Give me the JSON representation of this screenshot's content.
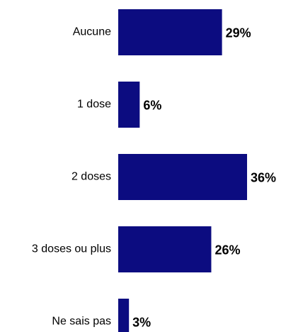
{
  "chart_data": {
    "type": "bar",
    "orientation": "horizontal",
    "categories": [
      "Aucune",
      "1 dose",
      "2 doses",
      "3 doses ou plus",
      "Ne sais pas"
    ],
    "values": [
      29,
      6,
      36,
      26,
      3
    ],
    "value_labels": [
      "29%",
      "6%",
      "36%",
      "26%",
      "3%"
    ],
    "color": "#0c0c80"
  }
}
